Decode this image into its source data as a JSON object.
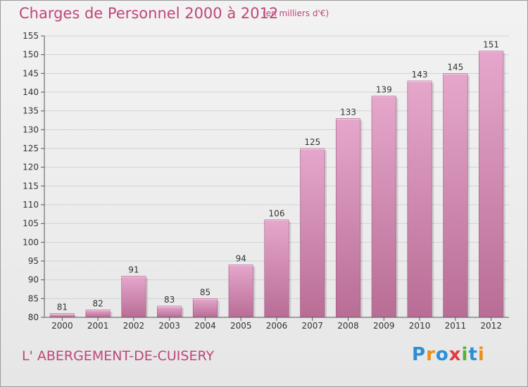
{
  "title": "Charges de Personnel 2000 à 2012",
  "unit_note": "(en milliers d'€)",
  "commune_name": "L' ABERGEMENT-DE-CUISERY",
  "brand": {
    "text": "Proxiti",
    "letters": [
      {
        "ch": "P",
        "color": "#2a8fd6"
      },
      {
        "ch": "r",
        "color": "#e8901e"
      },
      {
        "ch": "o",
        "color": "#2a8fd6"
      },
      {
        "ch": "x",
        "color": "#e23b3b"
      },
      {
        "ch": "i",
        "color": "#5ab02f"
      },
      {
        "ch": "t",
        "color": "#2a8fd6"
      },
      {
        "ch": "i",
        "color": "#e8901e"
      }
    ]
  },
  "colors": {
    "bar_top": "#e6a7cc",
    "bar_bottom": "#b86d95",
    "accent": "#c0457a"
  },
  "chart_data": {
    "type": "bar",
    "categories": [
      "2000",
      "2001",
      "2002",
      "2003",
      "2004",
      "2005",
      "2006",
      "2007",
      "2008",
      "2009",
      "2010",
      "2011",
      "2012"
    ],
    "values": [
      81,
      82,
      91,
      83,
      85,
      94,
      106,
      125,
      133,
      139,
      143,
      145,
      151
    ],
    "title": "Charges de Personnel 2000 à 2012",
    "ylabel": "",
    "xlabel": "",
    "ylim": [
      80,
      155
    ],
    "yticks": [
      80,
      85,
      90,
      95,
      100,
      105,
      110,
      115,
      120,
      125,
      130,
      135,
      140,
      145,
      150,
      155
    ],
    "grid": true
  }
}
